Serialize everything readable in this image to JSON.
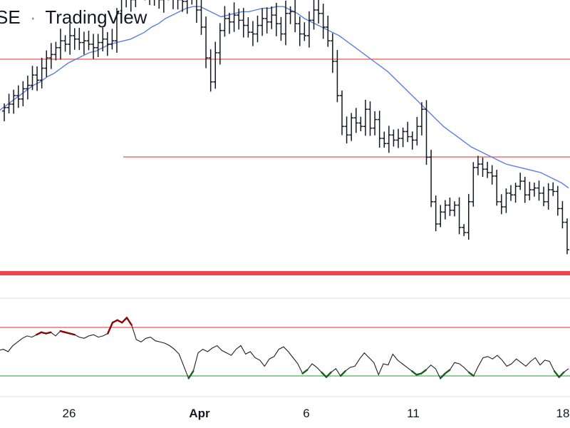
{
  "watermark": {
    "prefix": "SE",
    "separator": "·",
    "brand": "TradingView"
  },
  "colors": {
    "bars": "#131722",
    "sma": "#5b7fe0",
    "level_lines": "#ef5350",
    "pane_divider": "#ef4550",
    "oscillator": "#1f1f1f",
    "oscillator_overbought": "#8b0000",
    "oscillator_oversold": "#1b5e20",
    "upper_band": "#ef5350",
    "lower_band": "#4caf50",
    "grid": "#d9dce3"
  },
  "chart_data": {
    "type": "ohlc",
    "x_tick_labels": [
      "26",
      "Apr",
      "6",
      "11",
      "18"
    ],
    "price": {
      "close": [
        233,
        235,
        240,
        238,
        244,
        246,
        252,
        249,
        256,
        262,
        264,
        268,
        272,
        270,
        275,
        273,
        271,
        272,
        270,
        268,
        271,
        273,
        270,
        272,
        288,
        298,
        301,
        296,
        304,
        306,
        300,
        303,
        299,
        296,
        301,
        299,
        298,
        296,
        295,
        297,
        297,
        290,
        280,
        262,
        248,
        265,
        278,
        285,
        283,
        287,
        284,
        281,
        277,
        276,
        281,
        285,
        283,
        287,
        282,
        276,
        288,
        289,
        282,
        276,
        275,
        284,
        290,
        288,
        280,
        272,
        260,
        240,
        222,
        217,
        227,
        224,
        222,
        232,
        221,
        226,
        215,
        212,
        217,
        214,
        215,
        219,
        216,
        214,
        222,
        232,
        204,
        178,
        165,
        172,
        176,
        173,
        176,
        163,
        160,
        178,
        198,
        200,
        197,
        195,
        193,
        178,
        175,
        183,
        182,
        187,
        190,
        182,
        185,
        186,
        183,
        178,
        185,
        184,
        174,
        166,
        150
      ],
      "high_low_spread_pct": 2.6
    },
    "sma": [
      231,
      234,
      237,
      240,
      243,
      246,
      248,
      251,
      253,
      256,
      259,
      261,
      263,
      265,
      266,
      268,
      270,
      271,
      272,
      273,
      275,
      277,
      280,
      282,
      285,
      287,
      289,
      291,
      292,
      292,
      290,
      288,
      286,
      287,
      288,
      289,
      289,
      290,
      291,
      291,
      292,
      292,
      290,
      288,
      285,
      283,
      281,
      279,
      277,
      275,
      272,
      269,
      266,
      263,
      260,
      257,
      254,
      250,
      246,
      242,
      238,
      234,
      230,
      226,
      222,
      219,
      216,
      213,
      210,
      208,
      206,
      204,
      202,
      200,
      199,
      198,
      197,
      196,
      195,
      193,
      191,
      189,
      186
    ],
    "oscillator": {
      "levels": [
        70,
        30
      ],
      "values": [
        51,
        52,
        50,
        55,
        58,
        61,
        63,
        62,
        64,
        66,
        65,
        66,
        63,
        67,
        66,
        65,
        64,
        62,
        61,
        63,
        64,
        62,
        63,
        65,
        74,
        76,
        74,
        78,
        72,
        60,
        58,
        61,
        62,
        59,
        58,
        57,
        55,
        52,
        48,
        38,
        28,
        34,
        49,
        52,
        50,
        53,
        55,
        51,
        49,
        47,
        52,
        55,
        48,
        50,
        45,
        43,
        38,
        44,
        46,
        52,
        54,
        50,
        45,
        40,
        32,
        35,
        40,
        37,
        33,
        29,
        33,
        36,
        30,
        34,
        37,
        38,
        44,
        49,
        45,
        41,
        31,
        40,
        39,
        48,
        43,
        40,
        37,
        34,
        31,
        32,
        35,
        39,
        36,
        28,
        32,
        35,
        41,
        40,
        37,
        33,
        30,
        38,
        45,
        46,
        44,
        47,
        43,
        38,
        40,
        44,
        41,
        38,
        42,
        45,
        39,
        43,
        42,
        34,
        29,
        33,
        36
      ]
    }
  }
}
